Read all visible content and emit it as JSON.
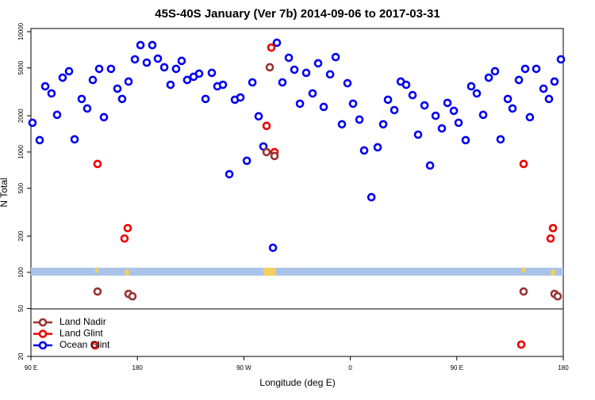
{
  "chart_data": {
    "type": "scatter",
    "title": "45S-40S January (Ver 7b)   2014-09-06 to 2017-03-31",
    "xlabel": "Longitude (deg E)",
    "ylabel": "N Total",
    "log_y": true,
    "legend": "lower left",
    "xlim": [
      90,
      540
    ],
    "xticks": [
      {
        "value": 90,
        "label": "90 E"
      },
      180,
      {
        "value": 270,
        "label": "90 W"
      },
      {
        "value": 360,
        "label": "0"
      },
      {
        "value": 450,
        "label": "90 E"
      },
      {
        "value": 540,
        "label": "180"
      }
    ],
    "ylim": [
      20,
      10000
    ],
    "yticks": [
      20,
      50,
      100,
      200,
      500,
      1000,
      2000,
      5000,
      10000
    ],
    "series": [
      {
        "name": "Land Nadir",
        "color": "#993333",
        "x": [
          146.3,
          172.5,
          175.8,
          289.2,
          291.9,
          295.9,
          506.5,
          532.6,
          535.3
        ],
        "values": [
          69.3,
          66.2,
          63.2,
          998,
          5060,
          926,
          69.3,
          66.2,
          63.2
        ]
      },
      {
        "name": "Land Glint",
        "color": "#ee0000",
        "x": [
          144.3,
          146.3,
          169.1,
          171.8,
          289.2,
          293.2,
          295.9,
          504.5,
          506.5,
          529.3,
          531.3
        ],
        "values": [
          24.7,
          796,
          191,
          233,
          1648,
          7380,
          998,
          25.1,
          796,
          191,
          233
        ]
      },
      {
        "name": "Ocean Glint",
        "color": "#0000ee",
        "x": [
          91.3,
          97.4,
          102.1,
          107.4,
          112.1,
          116.8,
          122.2,
          126.9,
          132.9,
          137.6,
          142.3,
          147.7,
          151.7,
          157.7,
          163.1,
          167.1,
          172.5,
          177.9,
          182.6,
          187.9,
          192.6,
          197.3,
          202.7,
          208.0,
          212.7,
          217.4,
          222.1,
          227.5,
          232.2,
          237.6,
          242.9,
          247.6,
          252.3,
          257.7,
          262.4,
          267.1,
          272.5,
          277.2,
          282.5,
          286.5,
          294.6,
          297.9,
          302.6,
          308.0,
          312.7,
          317.4,
          322.7,
          328.1,
          332.8,
          337.5,
          342.9,
          347.6,
          352.9,
          357.6,
          362.3,
          367.7,
          371.7,
          377.8,
          383.1,
          387.8,
          391.8,
          397.2,
          402.6,
          407.2,
          412.6,
          417.3,
          422.7,
          427.4,
          432.1,
          437.4,
          442.1,
          447.5,
          451.5,
          457.5,
          462.2,
          466.9,
          472.3,
          477.0,
          482.3,
          487.0,
          493.1,
          497.1,
          502.5,
          507.8,
          511.8,
          517.2,
          523.3,
          527.9,
          532.6,
          538.0
        ],
        "values": [
          1750,
          1254,
          3516,
          3070,
          2037,
          4150,
          4690,
          1274,
          2760,
          2300,
          3970,
          4910,
          1946,
          4910,
          3360,
          2760,
          3850,
          5890,
          7730,
          5530,
          7730,
          5970,
          5060,
          3620,
          4910,
          5720,
          3970,
          4220,
          4480,
          2760,
          4550,
          3516,
          3620,
          654,
          2720,
          2840,
          846,
          3790,
          1980,
          1112,
          160,
          8090,
          3790,
          6070,
          4830,
          2520,
          4550,
          3070,
          5460,
          2370,
          4420,
          6150,
          1700,
          3730,
          2520,
          1860,
          1030,
          421,
          1094,
          1700,
          2720,
          2230,
          3850,
          3620,
          2970,
          1394,
          2440,
          772,
          2000,
          1570,
          2560,
          2200,
          1750,
          1254,
          3516,
          3070,
          2037,
          4150,
          4690,
          1274,
          2760,
          2300,
          3970,
          4910,
          1946,
          4910,
          3360,
          2760,
          3850,
          5890
        ]
      }
    ]
  }
}
